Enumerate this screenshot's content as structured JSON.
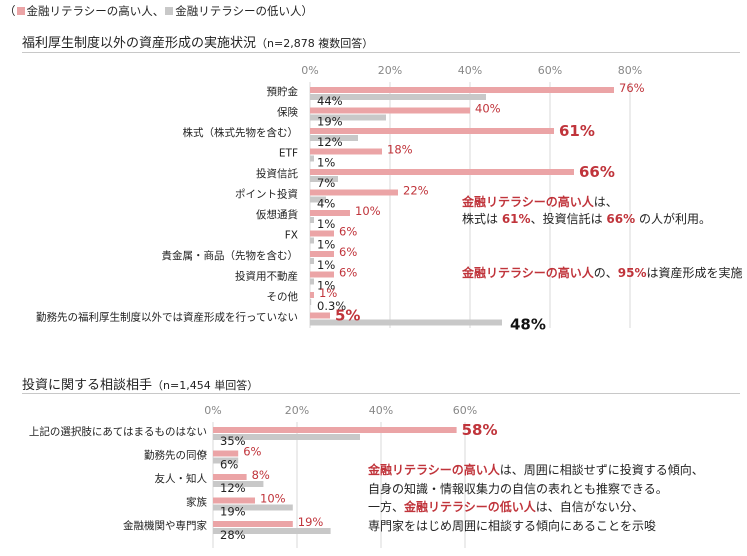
{
  "legend": {
    "open_paren": "（",
    "high_label": "金融リテラシーの高い人、",
    "low_label": "金融リテラシーの低い人）",
    "high_color": "#eba4a6",
    "low_color": "#c8c8c8"
  },
  "chart1": {
    "title": "福利厚生制度以外の資産形成の実施状況",
    "subtitle": "（n=2,878 複数回答）"
  },
  "chart2": {
    "title": "投資に関する相談相手",
    "subtitle": "（n=1,454 単回答）"
  },
  "notes": {
    "n1_line1_hl": "金融リテラシーの高い人",
    "n1_line1_rest": "は、",
    "n1_line2_a": "株式は ",
    "n1_line2_b": "61%",
    "n1_line2_c": "、投資信託は ",
    "n1_line2_d": "66%",
    "n1_line2_e": " の人が利用。",
    "n2_hl1": "金融リテラシーの高い人",
    "n2_mid": "の、",
    "n2_hl2": "95%",
    "n2_rest": "は資産形成を実施",
    "n3_line1_hl": "金融リテラシーの高い人",
    "n3_line1_rest": "は、周囲に相談せずに投資する傾向、",
    "n3_line2": "自身の知識・情報収集力の自信の表れとも推察できる。",
    "n3_line3_a": "一方、",
    "n3_line3_hl": "金融リテラシーの低い人",
    "n3_line3_b": "は、自信がない分、",
    "n3_line4": "専門家をはじめ周囲に相談する傾向にあることを示唆"
  },
  "chart_data": [
    {
      "type": "bar",
      "orientation": "horizontal",
      "title": "福利厚生制度以外の資産形成の実施状況",
      "subtitle": "（n=2,878 複数回答）",
      "xlim": [
        0,
        80
      ],
      "ticks": [
        "0%",
        "20%",
        "40%",
        "60%",
        "80%"
      ],
      "tick_values": [
        0,
        20,
        40,
        60,
        80
      ],
      "grid": true,
      "categories": [
        "預貯金",
        "保険",
        "株式（株式先物を含む）",
        "ETF",
        "投資信託",
        "ポイント投資",
        "仮想通貨",
        "FX",
        "貴金属・商品（先物を含む）",
        "投資用不動産",
        "その他",
        "勤務先の福利厚生制度以外では資産形成を行っていない"
      ],
      "series": [
        {
          "name": "金融リテラシーの高い人",
          "color": "#eba4a6",
          "values": [
            76,
            40,
            61,
            18,
            66,
            22,
            10,
            6,
            6,
            6,
            1,
            5
          ],
          "labels": [
            "76%",
            "40%",
            "61%",
            "18%",
            "66%",
            "22%",
            "10%",
            "6%",
            "6%",
            "6%",
            "1%",
            "5%"
          ],
          "emphasized": [
            false,
            false,
            true,
            false,
            true,
            false,
            false,
            false,
            false,
            false,
            false,
            true
          ]
        },
        {
          "name": "金融リテラシーの低い人",
          "color": "#c8c8c8",
          "values": [
            44,
            19,
            12,
            1,
            7,
            4,
            1,
            1,
            1,
            1,
            0.3,
            48
          ],
          "labels": [
            "44%",
            "19%",
            "12%",
            "1%",
            "7%",
            "4%",
            "1%",
            "1%",
            "1%",
            "1%",
            "0.3%",
            "48%"
          ],
          "emphasized": [
            false,
            false,
            false,
            false,
            false,
            false,
            false,
            false,
            false,
            false,
            false,
            true
          ]
        }
      ]
    },
    {
      "type": "bar",
      "orientation": "horizontal",
      "title": "投資に関する相談相手",
      "subtitle": "（n=1,454 単回答）",
      "xlim": [
        0,
        60
      ],
      "ticks": [
        "0%",
        "20%",
        "40%",
        "60%"
      ],
      "tick_values": [
        0,
        20,
        40,
        60
      ],
      "grid": true,
      "categories": [
        "上記の選択肢にあてはまるものはない",
        "勤務先の同僚",
        "友人・知人",
        "家族",
        "金融機関や専門家"
      ],
      "series": [
        {
          "name": "金融リテラシーの高い人",
          "color": "#eba4a6",
          "values": [
            58,
            6,
            8,
            10,
            19
          ],
          "labels": [
            "58%",
            "6%",
            "8%",
            "10%",
            "19%"
          ],
          "emphasized": [
            true,
            false,
            false,
            false,
            false
          ]
        },
        {
          "name": "金融リテラシーの低い人",
          "color": "#c8c8c8",
          "values": [
            35,
            6,
            12,
            19,
            28
          ],
          "labels": [
            "35%",
            "6%",
            "12%",
            "19%",
            "28%"
          ],
          "emphasized": [
            false,
            false,
            false,
            false,
            false
          ]
        }
      ]
    }
  ]
}
